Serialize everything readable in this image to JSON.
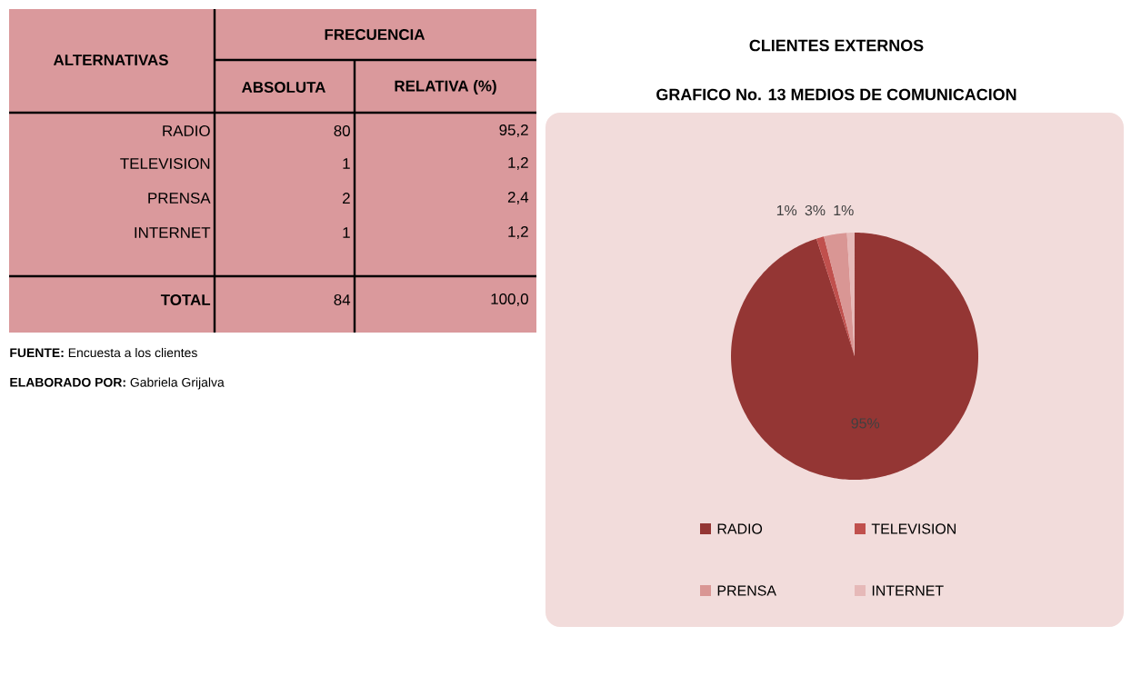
{
  "chart_data": {
    "type": "pie",
    "title": "CLIENTES EXTERNOS",
    "subtitle": "GRAFICO No. 13 MEDIOS DE COMUNICACION",
    "categories": [
      "RADIO",
      "TELEVISION",
      "PRENSA",
      "INTERNET"
    ],
    "values": [
      95,
      1,
      3,
      1
    ],
    "value_labels": [
      "95%",
      "1%",
      "3%",
      "1%"
    ],
    "colors": [
      "#943634",
      "#C0504D",
      "#D99694",
      "#E6B9B8"
    ],
    "legend": "bottom",
    "annotations": [
      "ALTERNATIVAS",
      "FRECUENCIA",
      "ABSOLUTA",
      "RELATIVA (%)",
      "RADIO",
      "80",
      "95,2",
      "TELEVISION",
      "1",
      "1,2",
      "PRENSA",
      "2",
      "2,4",
      "INTERNET",
      "1",
      "1,2",
      "TOTAL",
      "84",
      "100,0",
      "**FUENTE:** Encuesta a los clientes",
      "**ELABORADO POR:** Gabriela Grijalva"
    ]
  }
}
